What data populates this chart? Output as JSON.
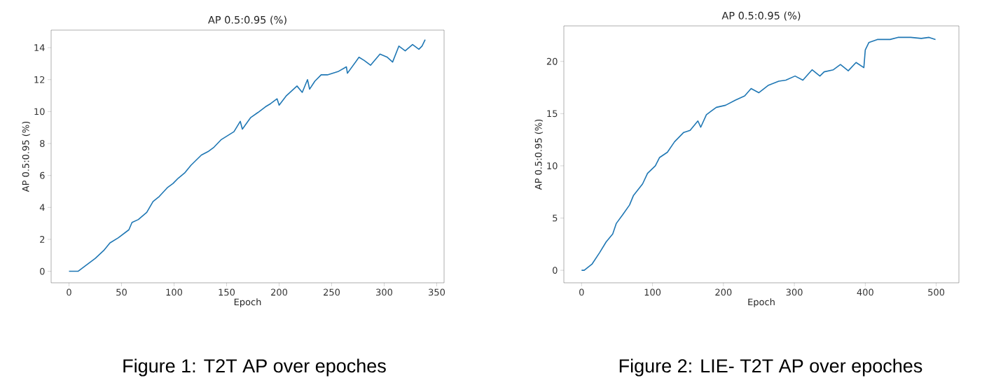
{
  "chart_data": [
    {
      "type": "line",
      "title": "AP 0.5:0.95 (%)",
      "xlabel": "Epoch",
      "ylabel": "AP 0.5:0.95 (%)",
      "annotations": [
        "Figure 1: T2T AP over epoches"
      ],
      "xlim": [
        -17,
        357
      ],
      "ylim": [
        -0.72,
        15.1
      ],
      "xticks": [
        0,
        50,
        100,
        150,
        200,
        250,
        300,
        350
      ],
      "yticks": [
        0,
        2,
        4,
        6,
        8,
        10,
        12,
        14
      ],
      "x": [
        0,
        8.6,
        15,
        25,
        33,
        39,
        47,
        57,
        60,
        66,
        74,
        80,
        86,
        94,
        99,
        104,
        110,
        116,
        126,
        133,
        138,
        145,
        157,
        163,
        165,
        173,
        180,
        187,
        192,
        198,
        200,
        207,
        217,
        222,
        227,
        229,
        234,
        240,
        246,
        256,
        264,
        265,
        276,
        281,
        287,
        296,
        303,
        308,
        314,
        320,
        327,
        333,
        336,
        339
      ],
      "series": [
        {
          "color": "#1f77b4",
          "values": [
            0,
            0,
            0.32,
            0.81,
            1.3,
            1.78,
            2.1,
            2.6,
            3.06,
            3.24,
            3.69,
            4.37,
            4.69,
            5.26,
            5.5,
            5.83,
            6.15,
            6.63,
            7.28,
            7.52,
            7.77,
            8.25,
            8.74,
            9.39,
            8.9,
            9.63,
            9.95,
            10.3,
            10.5,
            10.8,
            10.4,
            11.0,
            11.6,
            11.2,
            12.0,
            11.4,
            11.9,
            12.3,
            12.3,
            12.5,
            12.8,
            12.4,
            13.4,
            13.2,
            12.9,
            13.6,
            13.4,
            13.1,
            14.1,
            13.8,
            14.2,
            13.9,
            14.1,
            14.5
          ]
        }
      ]
    },
    {
      "type": "line",
      "title": "AP 0.5:0.95 (%)",
      "xlabel": "Epoch",
      "ylabel": "AP 0.5:0.95 (%)",
      "annotations": [
        "Figure 2: LIE- T2T AP over epoches"
      ],
      "xlim": [
        -25,
        532
      ],
      "ylim": [
        -1.2,
        23.4
      ],
      "xticks": [
        0,
        100,
        200,
        300,
        400,
        500
      ],
      "yticks": [
        0,
        5,
        10,
        15,
        20
      ],
      "x": [
        0,
        3.7,
        14.6,
        25.6,
        34.7,
        43.9,
        49,
        58.5,
        67.6,
        73,
        86,
        93,
        104,
        110,
        121,
        131,
        144,
        153,
        164,
        168,
        176,
        190,
        203,
        217,
        230,
        239,
        250,
        263,
        278,
        288,
        301,
        312,
        325,
        336,
        342,
        355,
        365,
        376,
        387,
        398,
        400,
        405,
        417,
        435,
        446,
        464,
        479,
        490,
        499
      ],
      "series": [
        {
          "color": "#1f77b4",
          "values": [
            0,
            0,
            0.58,
            1.71,
            2.72,
            3.48,
            4.49,
            5.37,
            6.25,
            7.14,
            8.27,
            9.28,
            10.0,
            10.8,
            11.3,
            12.3,
            13.2,
            13.4,
            14.3,
            13.7,
            14.9,
            15.6,
            15.8,
            16.3,
            16.7,
            17.4,
            17.0,
            17.7,
            18.1,
            18.2,
            18.6,
            18.2,
            19.2,
            18.6,
            19.0,
            19.2,
            19.7,
            19.1,
            19.9,
            19.4,
            21.1,
            21.8,
            22.1,
            22.1,
            22.3,
            22.3,
            22.2,
            22.3,
            22.1
          ]
        }
      ]
    }
  ]
}
